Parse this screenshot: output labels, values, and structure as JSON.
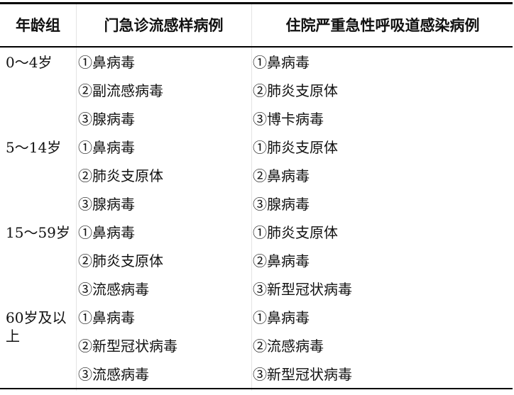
{
  "headers": [
    "年龄组",
    "门急诊流感样病例",
    "住院严重急性呼吸道感染病例"
  ],
  "rows": [
    {
      "age": "0～4岁",
      "outpatient": "①鼻病毒",
      "inpatient": "①鼻病毒"
    },
    {
      "age": "",
      "outpatient": "②副流感病毒",
      "inpatient": "②肺炎支原体"
    },
    {
      "age": "",
      "outpatient": "③腺病毒",
      "inpatient": "③博卡病毒"
    },
    {
      "age": "5～14岁",
      "outpatient": "①鼻病毒",
      "inpatient": "①肺炎支原体"
    },
    {
      "age": "",
      "outpatient": "②肺炎支原体",
      "inpatient": "②鼻病毒"
    },
    {
      "age": "",
      "outpatient": "③腺病毒",
      "inpatient": "③腺病毒"
    },
    {
      "age": "15～59岁",
      "outpatient": "①鼻病毒",
      "inpatient": "①肺炎支原体"
    },
    {
      "age": "",
      "outpatient": "②肺炎支原体",
      "inpatient": "②鼻病毒"
    },
    {
      "age": "",
      "outpatient": "③流感病毒",
      "inpatient": "③新型冠状病毒"
    },
    {
      "age": "60岁及以上",
      "outpatient": "①鼻病毒",
      "inpatient": "①鼻病毒"
    },
    {
      "age": "",
      "outpatient": "②新型冠状病毒",
      "inpatient": "②流感病毒"
    },
    {
      "age": "",
      "outpatient": "③流感病毒",
      "inpatient": "③新型冠状病毒"
    }
  ]
}
